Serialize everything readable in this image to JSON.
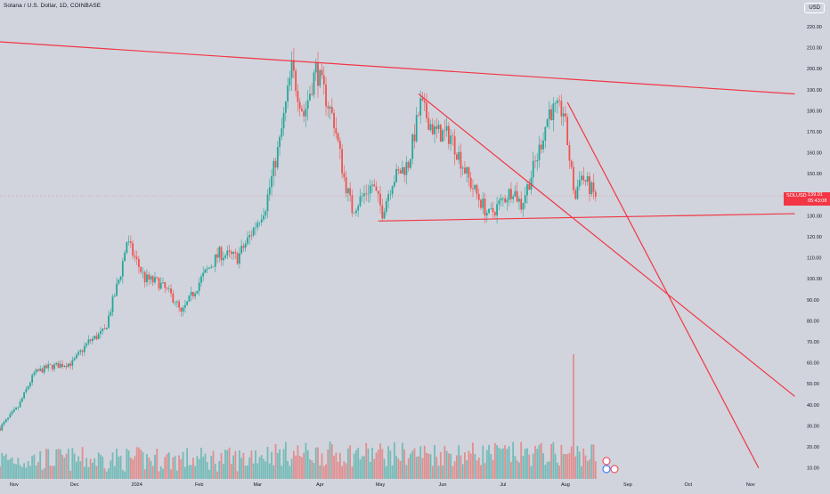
{
  "header": {
    "title": "Solana / U.S. Dollar, 1D, COINBASE",
    "currency_button": "USD"
  },
  "price_badge": {
    "symbol": "SOLUSD",
    "price": "139.01",
    "countdown": "05:43:08"
  },
  "colors": {
    "background": "#d1d4dc",
    "up": "#26a69a",
    "down": "#ef5350",
    "trendline": "#f23645",
    "axis_text": "#131722"
  },
  "chart_data": {
    "type": "candlestick",
    "symbol": "SOLUSD",
    "timeframe": "1D",
    "exchange": "COINBASE",
    "y_axis": {
      "scale": "linear",
      "range": [
        5,
        224
      ],
      "ticks": [
        "220.00",
        "210.00",
        "200.00",
        "190.00",
        "180.00",
        "170.00",
        "160.00",
        "150.00",
        "140.00",
        "130.00",
        "120.00",
        "110.00",
        "100.00",
        "90.00",
        "80.00",
        "70.00",
        "60.00",
        "50.00",
        "40.00",
        "30.00",
        "20.00",
        "10.00"
      ]
    },
    "x_axis": {
      "range": [
        "2023-10-25",
        "2024-11-25"
      ],
      "ticks": [
        {
          "date": "2023-11-01",
          "label": "Nov"
        },
        {
          "date": "2023-12-01",
          "label": "Dec"
        },
        {
          "date": "2024-01-01",
          "label": "2024"
        },
        {
          "date": "2024-02-01",
          "label": "Feb"
        },
        {
          "date": "2024-03-01",
          "label": "Mar"
        },
        {
          "date": "2024-04-01",
          "label": "Apr"
        },
        {
          "date": "2024-05-01",
          "label": "May"
        },
        {
          "date": "2024-06-01",
          "label": "Jun"
        },
        {
          "date": "2024-07-01",
          "label": "Jul"
        },
        {
          "date": "2024-08-01",
          "label": "Aug"
        },
        {
          "date": "2024-09-01",
          "label": "Sep"
        },
        {
          "date": "2024-10-01",
          "label": "Oct"
        },
        {
          "date": "2024-11-01",
          "label": "Nov"
        }
      ]
    },
    "price_path": [
      [
        "2023-10-25",
        29
      ],
      [
        "2023-11-03",
        39
      ],
      [
        "2023-11-11",
        55
      ],
      [
        "2023-11-18",
        58
      ],
      [
        "2023-11-30",
        60
      ],
      [
        "2023-12-08",
        70
      ],
      [
        "2023-12-16",
        75
      ],
      [
        "2023-12-24",
        103
      ],
      [
        "2023-12-27",
        118
      ],
      [
        "2024-01-05",
        100
      ],
      [
        "2024-01-12",
        98
      ],
      [
        "2024-01-20",
        90
      ],
      [
        "2024-01-23",
        83
      ],
      [
        "2024-02-02",
        100
      ],
      [
        "2024-02-11",
        112
      ],
      [
        "2024-02-20",
        110
      ],
      [
        "2024-02-26",
        120
      ],
      [
        "2024-03-05",
        135
      ],
      [
        "2024-03-12",
        165
      ],
      [
        "2024-03-18",
        200
      ],
      [
        "2024-03-24",
        178
      ],
      [
        "2024-03-30",
        200
      ],
      [
        "2024-04-08",
        175
      ],
      [
        "2024-04-13",
        148
      ],
      [
        "2024-04-17",
        133
      ],
      [
        "2024-04-27",
        145
      ],
      [
        "2024-05-02",
        132
      ],
      [
        "2024-05-07",
        147
      ],
      [
        "2024-05-15",
        155
      ],
      [
        "2024-05-21",
        183
      ],
      [
        "2024-05-28",
        170
      ],
      [
        "2024-06-05",
        168
      ],
      [
        "2024-06-15",
        145
      ],
      [
        "2024-06-24",
        130
      ],
      [
        "2024-07-06",
        143
      ],
      [
        "2024-07-10",
        135
      ],
      [
        "2024-07-18",
        158
      ],
      [
        "2024-07-24",
        180
      ],
      [
        "2024-07-31",
        180
      ],
      [
        "2024-08-04",
        150
      ],
      [
        "2024-08-06",
        138
      ],
      [
        "2024-08-08",
        150
      ],
      [
        "2024-08-12",
        145
      ],
      [
        "2024-08-16",
        139
      ]
    ],
    "current_price": 139.01,
    "volume_spike": {
      "date": "2024-08-05",
      "relative_height": 1.0
    },
    "trendlines": [
      {
        "name": "upper-resistance",
        "points": [
          [
            "2023-10-22",
            213
          ],
          [
            "2024-11-23",
            188
          ]
        ]
      },
      {
        "name": "support",
        "points": [
          [
            "2024-04-30",
            127.5
          ],
          [
            "2024-11-23",
            131
          ]
        ]
      },
      {
        "name": "descending-from-may",
        "points": [
          [
            "2024-05-20",
            188
          ],
          [
            "2024-11-23",
            44
          ]
        ]
      },
      {
        "name": "steep-from-august",
        "points": [
          [
            "2024-08-02",
            184
          ],
          [
            "2024-11-05",
            10
          ]
        ]
      }
    ],
    "grid": false,
    "legend": "none"
  }
}
